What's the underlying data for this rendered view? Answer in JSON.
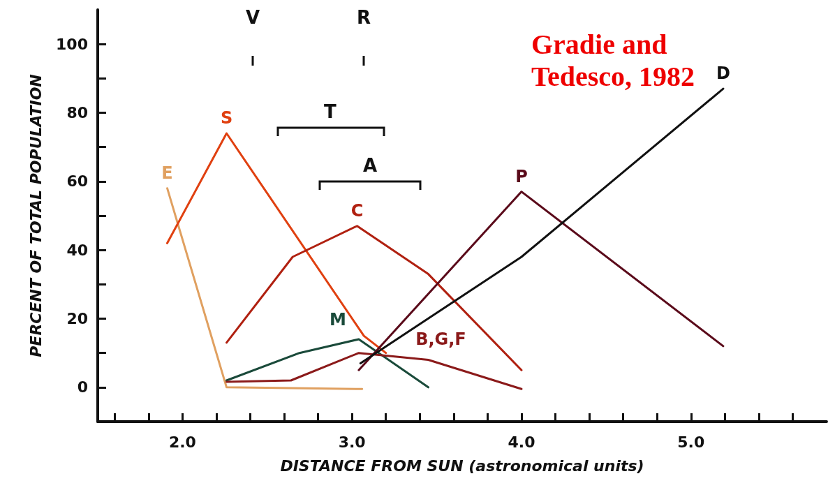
{
  "chart_data": {
    "type": "line",
    "xlabel": "DISTANCE FROM SUN (astronomical units)",
    "ylabel": "PERCENT OF TOTAL POPULATION",
    "xlim": [
      1.5,
      5.8
    ],
    "xticks": [
      {
        "value": 1.6,
        "label": null
      },
      {
        "value": 1.8,
        "label": null
      },
      {
        "value": 2,
        "label": "2.0"
      },
      {
        "value": 2.2,
        "label": null
      },
      {
        "value": 2.4,
        "label": null
      },
      {
        "value": 2.6,
        "label": null
      },
      {
        "value": 2.8,
        "label": null
      },
      {
        "value": 3,
        "label": "3.0"
      },
      {
        "value": 3.2,
        "label": null
      },
      {
        "value": 3.4,
        "label": null
      },
      {
        "value": 3.6,
        "label": null
      },
      {
        "value": 3.8,
        "label": null
      },
      {
        "value": 4,
        "label": "4.0"
      },
      {
        "value": 4.2,
        "label": null
      },
      {
        "value": 4.4,
        "label": null
      },
      {
        "value": 4.6,
        "label": null
      },
      {
        "value": 4.8,
        "label": null
      },
      {
        "value": 5,
        "label": "5.0"
      },
      {
        "value": 5.2,
        "label": null
      },
      {
        "value": 5.4,
        "label": null
      },
      {
        "value": 5.6,
        "label": null
      }
    ],
    "ylim": [
      -10,
      110
    ],
    "yticks": [
      0,
      {
        "value": 10,
        "label": null
      },
      20,
      {
        "value": 30,
        "label": null
      },
      40,
      {
        "value": 50,
        "label": null
      },
      60,
      {
        "value": 70,
        "label": null
      },
      80,
      {
        "value": 90,
        "label": null
      },
      100
    ],
    "grid": false,
    "legend": false,
    "marker": "none",
    "line_style": "solid",
    "series": [
      {
        "name": "E",
        "color": "#e0a060",
        "x": [
          1.91,
          2.26,
          3.06
        ],
        "values": [
          58,
          0,
          -0.5
        ]
      },
      {
        "name": "S",
        "color": "#e04010",
        "x": [
          1.91,
          2.26,
          3.07,
          3.2
        ],
        "values": [
          42,
          74,
          15,
          10
        ]
      },
      {
        "name": "C",
        "color": "#b02010",
        "x": [
          2.26,
          2.65,
          3.03,
          3.45,
          4.0
        ],
        "values": [
          13,
          38,
          47,
          33,
          5
        ]
      },
      {
        "name": "M",
        "color": "#1a4a3a",
        "x": [
          2.26,
          2.69,
          3.04,
          3.45
        ],
        "values": [
          2,
          10,
          14,
          0
        ]
      },
      {
        "name": "B,G,F",
        "color": "#8b1a1a",
        "x": [
          2.26,
          2.64,
          3.04,
          3.45,
          4.0
        ],
        "values": [
          1.6,
          2,
          10,
          8,
          -0.5
        ]
      },
      {
        "name": "P",
        "color": "#5a0a1a",
        "x": [
          3.04,
          4.0,
          5.19
        ],
        "values": [
          5,
          57,
          12
        ]
      },
      {
        "name": "D",
        "color": "#111111",
        "x": [
          3.05,
          4.0,
          5.19
        ],
        "values": [
          7,
          38,
          87
        ]
      }
    ],
    "annotations": [
      "V",
      "R",
      "T",
      "A",
      "Gradie and Tedesco, 1982"
    ]
  }
}
